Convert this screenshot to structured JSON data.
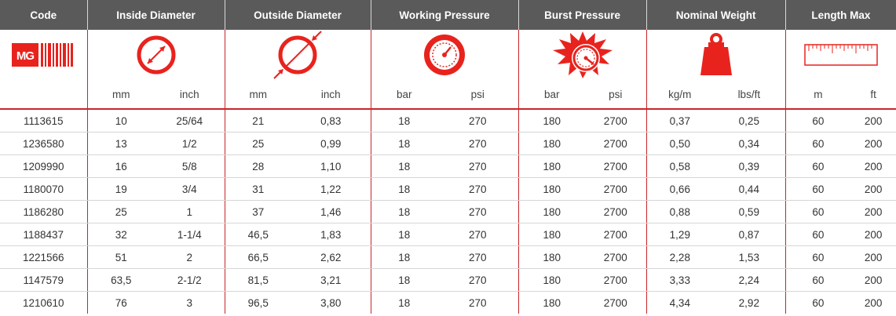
{
  "colors": {
    "accent": "#e8231e",
    "header_bg": "#5a5a5a",
    "divider": "#c8252a"
  },
  "header": {
    "code": "Code",
    "inside_diameter": "Inside Diameter",
    "outside_diameter": "Outside Diameter",
    "working_pressure": "Working Pressure",
    "burst_pressure": "Burst Pressure",
    "nominal_weight": "Nominal Weight",
    "length_max": "Length Max"
  },
  "icons": {
    "code": "barcode-logo-icon",
    "inside_diameter": "inside-diameter-icon",
    "outside_diameter": "outside-diameter-icon",
    "working_pressure": "pressure-gauge-icon",
    "burst_pressure": "burst-gauge-icon",
    "nominal_weight": "weight-icon",
    "length_max": "ruler-icon"
  },
  "logo_text": "MG",
  "units": {
    "id_mm": "mm",
    "id_inch": "inch",
    "od_mm": "mm",
    "od_inch": "inch",
    "wp_bar": "bar",
    "wp_psi": "psi",
    "bp_bar": "bar",
    "bp_psi": "psi",
    "w_kgm": "kg/m",
    "w_lbsft": "lbs/ft",
    "l_m": "m",
    "l_ft": "ft"
  },
  "rows": [
    {
      "code": "1113615",
      "id_mm": "10",
      "id_inch": "25/64",
      "od_mm": "21",
      "od_inch": "0,83",
      "wp_bar": "18",
      "wp_psi": "270",
      "bp_bar": "180",
      "bp_psi": "2700",
      "w_kgm": "0,37",
      "w_lbsft": "0,25",
      "l_m": "60",
      "l_ft": "200"
    },
    {
      "code": "1236580",
      "id_mm": "13",
      "id_inch": "1/2",
      "od_mm": "25",
      "od_inch": "0,99",
      "wp_bar": "18",
      "wp_psi": "270",
      "bp_bar": "180",
      "bp_psi": "2700",
      "w_kgm": "0,50",
      "w_lbsft": "0,34",
      "l_m": "60",
      "l_ft": "200"
    },
    {
      "code": "1209990",
      "id_mm": "16",
      "id_inch": "5/8",
      "od_mm": "28",
      "od_inch": "1,10",
      "wp_bar": "18",
      "wp_psi": "270",
      "bp_bar": "180",
      "bp_psi": "2700",
      "w_kgm": "0,58",
      "w_lbsft": "0,39",
      "l_m": "60",
      "l_ft": "200"
    },
    {
      "code": "1180070",
      "id_mm": "19",
      "id_inch": "3/4",
      "od_mm": "31",
      "od_inch": "1,22",
      "wp_bar": "18",
      "wp_psi": "270",
      "bp_bar": "180",
      "bp_psi": "2700",
      "w_kgm": "0,66",
      "w_lbsft": "0,44",
      "l_m": "60",
      "l_ft": "200"
    },
    {
      "code": "1186280",
      "id_mm": "25",
      "id_inch": "1",
      "od_mm": "37",
      "od_inch": "1,46",
      "wp_bar": "18",
      "wp_psi": "270",
      "bp_bar": "180",
      "bp_psi": "2700",
      "w_kgm": "0,88",
      "w_lbsft": "0,59",
      "l_m": "60",
      "l_ft": "200"
    },
    {
      "code": "1188437",
      "id_mm": "32",
      "id_inch": "1-1/4",
      "od_mm": "46,5",
      "od_inch": "1,83",
      "wp_bar": "18",
      "wp_psi": "270",
      "bp_bar": "180",
      "bp_psi": "2700",
      "w_kgm": "1,29",
      "w_lbsft": "0,87",
      "l_m": "60",
      "l_ft": "200"
    },
    {
      "code": "1221566",
      "id_mm": "51",
      "id_inch": "2",
      "od_mm": "66,5",
      "od_inch": "2,62",
      "wp_bar": "18",
      "wp_psi": "270",
      "bp_bar": "180",
      "bp_psi": "2700",
      "w_kgm": "2,28",
      "w_lbsft": "1,53",
      "l_m": "60",
      "l_ft": "200"
    },
    {
      "code": "1147579",
      "id_mm": "63,5",
      "id_inch": "2-1/2",
      "od_mm": "81,5",
      "od_inch": "3,21",
      "wp_bar": "18",
      "wp_psi": "270",
      "bp_bar": "180",
      "bp_psi": "2700",
      "w_kgm": "3,33",
      "w_lbsft": "2,24",
      "l_m": "60",
      "l_ft": "200"
    },
    {
      "code": "1210610",
      "id_mm": "76",
      "id_inch": "3",
      "od_mm": "96,5",
      "od_inch": "3,80",
      "wp_bar": "18",
      "wp_psi": "270",
      "bp_bar": "180",
      "bp_psi": "2700",
      "w_kgm": "4,34",
      "w_lbsft": "2,92",
      "l_m": "60",
      "l_ft": "200"
    }
  ]
}
